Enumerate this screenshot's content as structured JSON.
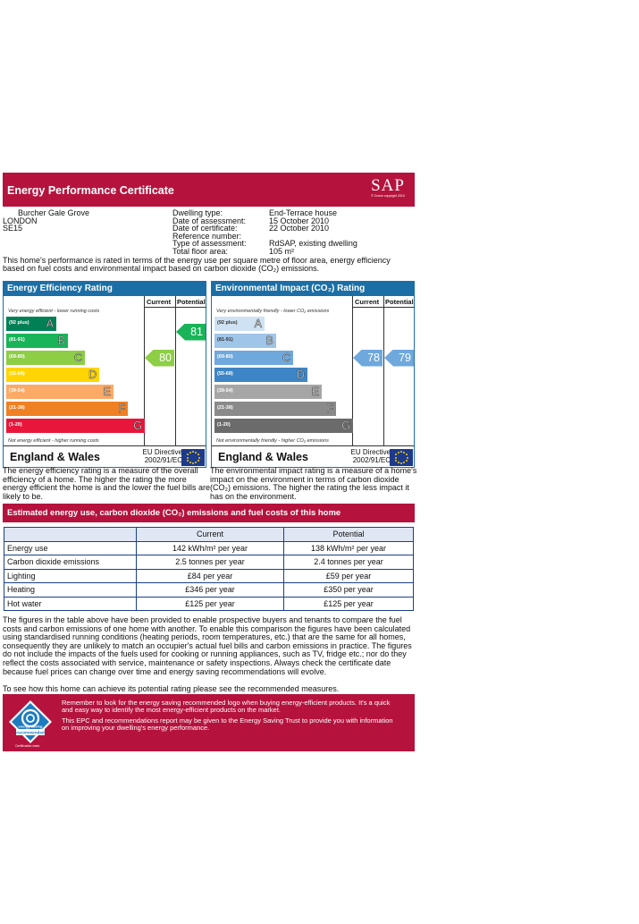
{
  "header": {
    "title": "Energy Performance Certificate",
    "logo_text": "SAP",
    "logo_sub": "© Crown copyright 2010"
  },
  "address": [
    "Burcher Gale Grove",
    "LONDON",
    "SE15"
  ],
  "details": {
    "labels": [
      "Dwelling type:",
      "Date of assessment:",
      "Date of certificate:",
      "Reference number:",
      "Type of assessment:",
      "Total floor area:"
    ],
    "values": [
      "End-Terrace house",
      "15 October 2010",
      "22 October 2010",
      "",
      "RdSAP, existing dwelling",
      "105 m²"
    ]
  },
  "intro": "This home's performance is rated in terms of the energy use per square metre of floor area, energy efficiency based on fuel costs and environmental impact based on carbon dioxide (CO₂) emissions.",
  "efficiency": {
    "title": "Energy Efficiency Rating",
    "col_current": "Current",
    "col_potential": "Potential",
    "top_note": "Very energy efficient - lower running costs",
    "bottom_note": "Not energy efficient - higher running costs",
    "bands": [
      {
        "range": "(92 plus)",
        "letter": "A",
        "color": "#008054"
      },
      {
        "range": "(81-91)",
        "letter": "B",
        "color": "#19b459"
      },
      {
        "range": "(69-80)",
        "letter": "C",
        "color": "#8dce46"
      },
      {
        "range": "(55-68)",
        "letter": "D",
        "color": "#ffd500"
      },
      {
        "range": "(39-54)",
        "letter": "E",
        "color": "#fcaa65"
      },
      {
        "range": "(21-38)",
        "letter": "F",
        "color": "#ef8023"
      },
      {
        "range": "(1-20)",
        "letter": "G",
        "color": "#e9153b"
      }
    ],
    "current": "80",
    "potential": "81",
    "current_color": "#8dce46",
    "potential_color": "#19b459",
    "region": "England & Wales",
    "eu_directive": "EU Directive",
    "eu_code": "2002/91/EC"
  },
  "environment": {
    "title": "Environmental Impact (CO₂) Rating",
    "col_current": "Current",
    "col_potential": "Potential",
    "top_note": "Very environmentally friendly - lower CO₂ emissions",
    "bottom_note": "Not environmentally friendly - higher CO₂ emissions",
    "bands": [
      {
        "range": "(92 plus)",
        "letter": "A",
        "color": "#cfe2f3"
      },
      {
        "range": "(81-91)",
        "letter": "B",
        "color": "#9fc5e8"
      },
      {
        "range": "(69-80)",
        "letter": "C",
        "color": "#6fa8dc"
      },
      {
        "range": "(55-68)",
        "letter": "D",
        "color": "#3d85c6"
      },
      {
        "range": "(39-54)",
        "letter": "E",
        "color": "#a6a6a6"
      },
      {
        "range": "(21-38)",
        "letter": "F",
        "color": "#8a8a8a"
      },
      {
        "range": "(1-20)",
        "letter": "G",
        "color": "#6b6b6b"
      }
    ],
    "current": "78",
    "potential": "79",
    "current_color": "#6fa8dc",
    "potential_color": "#6fa8dc",
    "region": "England & Wales",
    "eu_directive": "EU Directive",
    "eu_code": "2002/91/EC"
  },
  "efficiency_desc": "The energy efficiency rating is a measure of the overall efficiency of a home. The higher the rating the more energy efficient the home is and the lower the fuel bills are likely to be.",
  "environment_desc": "The environmental impact rating is a measure of a home's impact on the environment in terms of carbon dioxide (CO₂) emissions. The higher the rating the less impact it has on the environment.",
  "costs": {
    "title": "Estimated energy use, carbon dioxide (CO₂) emissions and fuel costs of this home",
    "headers": [
      "",
      "Current",
      "Potential"
    ],
    "rows": [
      [
        "Energy use",
        "142 kWh/m² per year",
        "138 kWh/m² per year"
      ],
      [
        "Carbon dioxide emissions",
        "2.5 tonnes per year",
        "2.4 tonnes per year"
      ],
      [
        "Lighting",
        "£84 per year",
        "£59 per year"
      ],
      [
        "Heating",
        "£346 per year",
        "£350 per year"
      ],
      [
        "Hot water",
        "£125 per year",
        "£125 per year"
      ]
    ]
  },
  "costs_note": "The figures in the table above have been provided to enable prospective buyers and tenants to compare the fuel costs and carbon emissions of one home with another. To enable this comparison the figures have been calculated using standardised running conditions (heating periods, room temperatures, etc.) that are the same for all homes, consequently they are unlikely to match an occupier's actual fuel bills and carbon emissions in practice. The figures do not include the impacts of the fuels used for cooking or running appliances, such as TV, fridge etc.; nor do they reflect the costs associated with service, maintenance or safety inspections. Always check the certificate date because fuel prices can change over time and energy saving recommendations will evolve.",
  "see_note": "To see how this home can achieve its potential rating please see the recommended measures.",
  "footer": {
    "line1": "Remember to look for the energy saving recommended logo when buying energy-efficient products. It's a quick and easy way to identify the most energy-efficient products on the market.",
    "line2": "This EPC and recommendations report may be given to the Energy Saving Trust to provide you with information on improving your dwelling's energy performance.",
    "logo_top": "energy saving",
    "logo_bottom": "recommended",
    "logo_mark": "Certification mark"
  }
}
